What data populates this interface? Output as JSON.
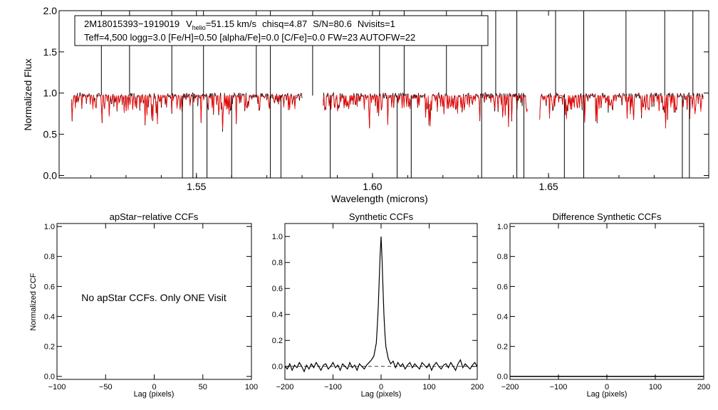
{
  "chart_data": [
    {
      "type": "line",
      "panel": "spectrum",
      "title_line1": {
        "star_id": "2M18015393−1919019",
        "v_symbol": "V",
        "v_subscript": "helio",
        "v_value": "=51.15 km/s",
        "chisq": "chisq=4.87",
        "snr": "S/N=80.6",
        "nvisits": "Nvisits=1"
      },
      "title_line2": "Teff=4,500 logg=3.0 [Fe/H]=0.50 [alpha/Fe]=0.0 [C/Fe]=0.0 FW=23 AUTOFW=22",
      "xlabel": "Wavelength (microns)",
      "ylabel": "Normalized Flux",
      "xlim": [
        1.511,
        1.6955
      ],
      "ylim": [
        -0.03,
        2.0
      ],
      "xticks": [
        "1.55",
        "1.60",
        "1.65"
      ],
      "xtick_values": [
        1.55,
        1.6,
        1.65
      ],
      "yticks": [
        "0.0",
        "0.5",
        "1.0",
        "1.5",
        "2.0"
      ],
      "ytick_values": [
        0.0,
        0.5,
        1.0,
        1.5,
        2.0
      ],
      "detector_ranges": [
        [
          1.5145,
          1.58
        ],
        [
          1.586,
          1.644
        ],
        [
          1.6475,
          1.694
        ]
      ],
      "continuum_level": 0.97,
      "series": [
        {
          "name": "observed spectrum",
          "color": "#000000"
        },
        {
          "name": "best-fit model",
          "color": "#ff0000"
        }
      ],
      "upward_spikes": [
        1.523,
        1.531,
        1.543,
        1.552,
        1.567,
        1.571,
        1.583,
        1.602,
        1.609,
        1.621,
        1.631,
        1.635,
        1.641,
        1.652,
        1.66,
        1.672,
        1.683,
        1.691
      ],
      "downward_spikes": [
        1.546,
        1.549,
        1.553,
        1.56,
        1.571,
        1.574,
        1.588,
        1.607,
        1.611,
        1.631,
        1.641,
        1.643,
        1.6545,
        1.66,
        1.688,
        1.69
      ]
    },
    {
      "type": "line",
      "panel": "apstar-ccf",
      "title": "apStar−relative CCFs",
      "xlabel": "Lag (pixels)",
      "ylabel": "Normalized CCF",
      "xlim": [
        -100,
        100
      ],
      "ylim": [
        -0.02,
        1.02
      ],
      "xticks": [
        "−100",
        "−50",
        "0",
        "50",
        "100"
      ],
      "xtick_values": [
        -100,
        -50,
        0,
        50,
        100
      ],
      "yticks": [
        "0.0",
        "0.2",
        "0.4",
        "0.6",
        "0.8",
        "1.0"
      ],
      "ytick_values": [
        0.0,
        0.2,
        0.4,
        0.6,
        0.8,
        1.0
      ],
      "annotation": "No apStar CCFs.  Only ONE Visit",
      "series": []
    },
    {
      "type": "line",
      "panel": "synthetic-ccf",
      "title": "Synthetic CCFs",
      "xlabel": "Lag (pixels)",
      "ylabel": "",
      "xlim": [
        -200,
        200
      ],
      "ylim": [
        -0.1,
        1.1
      ],
      "xticks": [
        "−200",
        "−100",
        "0",
        "100",
        "200"
      ],
      "xtick_values": [
        -200,
        -100,
        0,
        100,
        200
      ],
      "yticks": [
        "0.0",
        "0.2",
        "0.4",
        "0.6",
        "0.8",
        "1.0"
      ],
      "ytick_values": [
        0.0,
        0.2,
        0.4,
        0.6,
        0.8,
        1.0
      ],
      "peak_lag": 0,
      "peak_value": 1.0,
      "series": [
        {
          "name": "synthetic CCF",
          "color": "#000000",
          "x": [
            -200,
            -195,
            -190,
            -185,
            -180,
            -175,
            -170,
            -165,
            -160,
            -155,
            -150,
            -145,
            -140,
            -135,
            -130,
            -125,
            -120,
            -115,
            -110,
            -105,
            -100,
            -95,
            -90,
            -85,
            -80,
            -75,
            -70,
            -65,
            -60,
            -55,
            -50,
            -45,
            -40,
            -35,
            -30,
            -25,
            -20,
            -15,
            -10,
            -8,
            -6,
            -4,
            -2,
            0,
            2,
            4,
            6,
            8,
            10,
            15,
            20,
            25,
            30,
            35,
            40,
            45,
            50,
            55,
            60,
            65,
            70,
            75,
            80,
            85,
            90,
            95,
            100,
            105,
            110,
            115,
            120,
            125,
            130,
            135,
            140,
            145,
            150,
            155,
            160,
            165,
            170,
            175,
            180,
            185,
            190,
            195,
            200
          ],
          "y": [
            0.0,
            -0.02,
            0.02,
            -0.03,
            0.01,
            -0.01,
            0.03,
            0.0,
            -0.04,
            0.01,
            -0.02,
            0.02,
            -0.01,
            0.03,
            0.0,
            -0.03,
            0.01,
            0.02,
            -0.02,
            0.0,
            0.03,
            -0.01,
            0.01,
            -0.03,
            0.02,
            0.0,
            -0.02,
            0.03,
            -0.01,
            0.01,
            -0.03,
            0.02,
            0.0,
            -0.02,
            0.01,
            0.03,
            0.05,
            0.08,
            0.18,
            0.3,
            0.45,
            0.65,
            0.85,
            1.0,
            0.82,
            0.6,
            0.4,
            0.25,
            0.15,
            0.06,
            0.02,
            0.04,
            -0.01,
            0.03,
            0.0,
            0.02,
            -0.02,
            0.01,
            0.03,
            -0.01,
            0.02,
            0.0,
            -0.02,
            0.03,
            0.01,
            -0.01,
            0.02,
            -0.03,
            0.01,
            0.03,
            0.0,
            -0.02,
            0.01,
            0.02,
            -0.01,
            0.03,
            0.0,
            -0.03,
            0.02,
            0.05,
            -0.01,
            0.02,
            0.0,
            -0.02,
            0.01,
            0.03,
            0.0
          ]
        },
        {
          "name": "zero level",
          "color": "#000000",
          "dashed": true,
          "x": [
            -200,
            200
          ],
          "y": [
            0,
            0
          ]
        }
      ]
    },
    {
      "type": "line",
      "panel": "difference-ccf",
      "title": "Difference Synthetic CCFs",
      "xlabel": "Lag (pixels)",
      "ylabel": "",
      "xlim": [
        -200,
        200
      ],
      "ylim": [
        -0.02,
        1.02
      ],
      "xticks": [
        "−200",
        "−100",
        "0",
        "100",
        "200"
      ],
      "xtick_values": [
        -200,
        -100,
        0,
        100,
        200
      ],
      "yticks": [
        "0.0",
        "0.2",
        "0.4",
        "0.6",
        "0.8",
        "1.0"
      ],
      "ytick_values": [
        0.0,
        0.2,
        0.4,
        0.6,
        0.8,
        1.0
      ],
      "series": [
        {
          "name": "difference CCF",
          "color": "#000000",
          "x": [
            -200,
            200
          ],
          "y": [
            0,
            0
          ]
        }
      ]
    }
  ]
}
